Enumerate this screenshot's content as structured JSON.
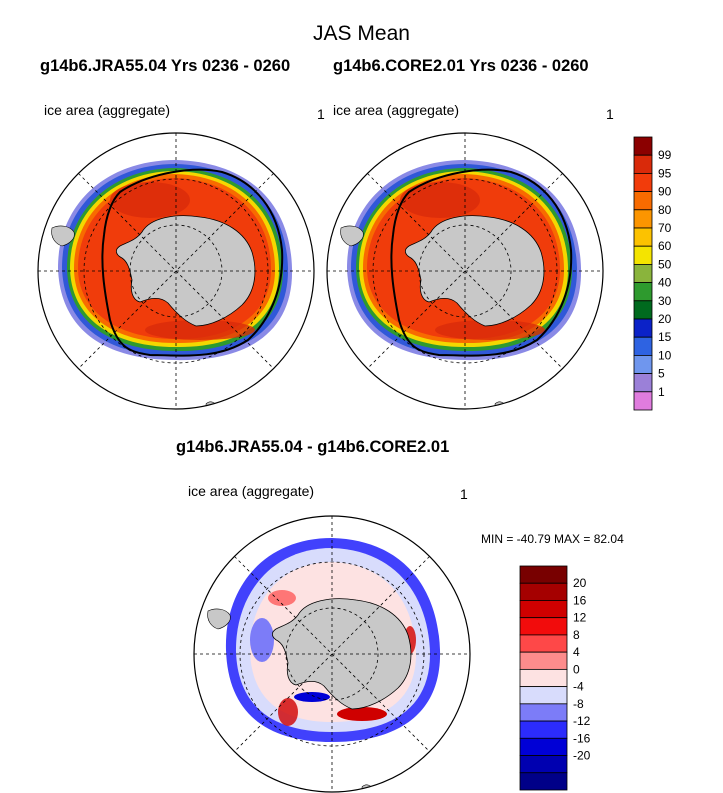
{
  "title": "JAS Mean",
  "top_headers": {
    "left": "g14b6.JRA55.04  Yrs 0236 - 0260",
    "right": "g14b6.CORE2.01  Yrs 0236 - 0260"
  },
  "diff_header": "g14b6.JRA55.04 - g14b6.CORE2.01",
  "panels": [
    {
      "label": "ice area  (aggregate)",
      "number": "1"
    },
    {
      "label": "ice area  (aggregate)",
      "number": "1"
    },
    {
      "label": "ice area  (aggregate)",
      "number": "1"
    }
  ],
  "minmax_text": "MIN = -40.79 MAX =  82.04",
  "chart_data": [
    {
      "type": "heatmap",
      "title": "g14b6.JRA55.04  Yrs 0236 - 0260",
      "subtitle": "ice area  (aggregate)",
      "projection": "south polar stereographic",
      "field": "sea ice concentration (%)",
      "annotation": "1"
    },
    {
      "type": "heatmap",
      "title": "g14b6.CORE2.01  Yrs 0236 - 0260",
      "subtitle": "ice area  (aggregate)",
      "projection": "south polar stereographic",
      "field": "sea ice concentration (%)",
      "annotation": "1"
    },
    {
      "type": "heatmap",
      "title": "g14b6.JRA55.04 - g14b6.CORE2.01",
      "subtitle": "ice area  (aggregate)",
      "projection": "south polar stereographic",
      "field": "difference in sea ice concentration (%)",
      "min": -40.79,
      "max": 82.04
    }
  ],
  "legend_top": {
    "levels": [
      "99",
      "95",
      "90",
      "80",
      "70",
      "60",
      "50",
      "40",
      "30",
      "20",
      "15",
      "10",
      "5",
      "1"
    ],
    "colors": [
      "#8b0000",
      "#d92a0a",
      "#f23c0b",
      "#f86b00",
      "#fc9500",
      "#fcc200",
      "#f4e400",
      "#8ab43c",
      "#2e9a2e",
      "#006a1e",
      "#0b22c8",
      "#2e63e2",
      "#6f96ee",
      "#9b80d8",
      "#e07cde"
    ]
  },
  "legend_diff": {
    "levels": [
      "20",
      "16",
      "12",
      "8",
      "4",
      "0",
      "-4",
      "-8",
      "-12",
      "-16",
      "-20"
    ],
    "colors": [
      "#780000",
      "#a50000",
      "#cf0000",
      "#f20c0c",
      "#fe4848",
      "#fd8c8c",
      "#fde2e2",
      "#d8dcfc",
      "#7c7cf8",
      "#2c2cfc",
      "#0000d6",
      "#0000b0",
      "#000088"
    ]
  },
  "colors": {
    "land": "#c8c8c8",
    "ice_edge_line": "#000000",
    "grid_line": "#000000"
  }
}
